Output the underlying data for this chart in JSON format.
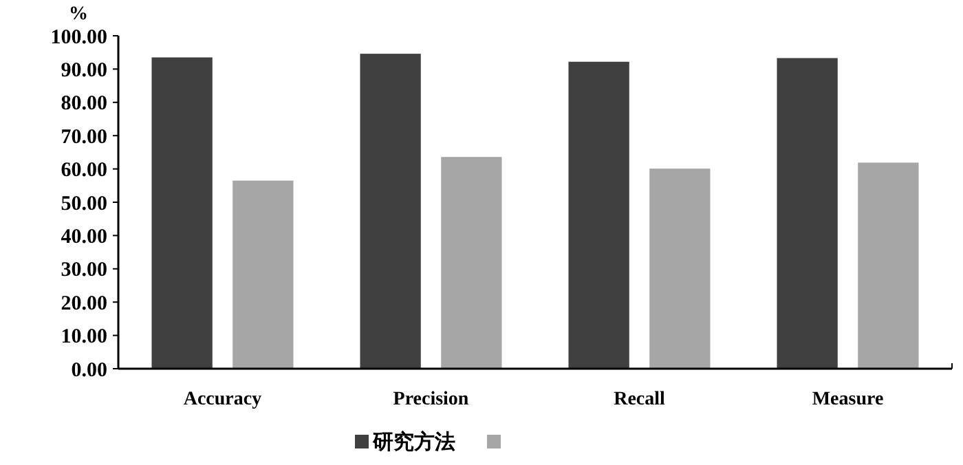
{
  "chart_data": {
    "type": "bar",
    "ylabel": "%",
    "categories": [
      "Accuracy",
      "Precision",
      "Recall",
      "Measure"
    ],
    "series": [
      {
        "name": "研究方法",
        "color": "#404040",
        "values": [
          93.5,
          94.6,
          92.2,
          93.3
        ]
      },
      {
        "color": "#a6a6a6",
        "values": [
          56.5,
          63.6,
          60.1,
          61.9
        ]
      }
    ],
    "ylim": [
      0,
      100
    ],
    "yticks": [
      {
        "value": 0,
        "label": "0.00"
      },
      {
        "value": 10,
        "label": "10.00"
      },
      {
        "value": 20,
        "label": "20.00"
      },
      {
        "value": 30,
        "label": "30.00"
      },
      {
        "value": 40,
        "label": "40.00"
      },
      {
        "value": 50,
        "label": "50.00"
      },
      {
        "value": 60,
        "label": "60.00"
      },
      {
        "value": 70,
        "label": "70.00"
      },
      {
        "value": 80,
        "label": "80.00"
      },
      {
        "value": 90,
        "label": "90.00"
      },
      {
        "value": 100,
        "label": "100.00"
      }
    ],
    "grid": false,
    "legend": "bottom"
  }
}
